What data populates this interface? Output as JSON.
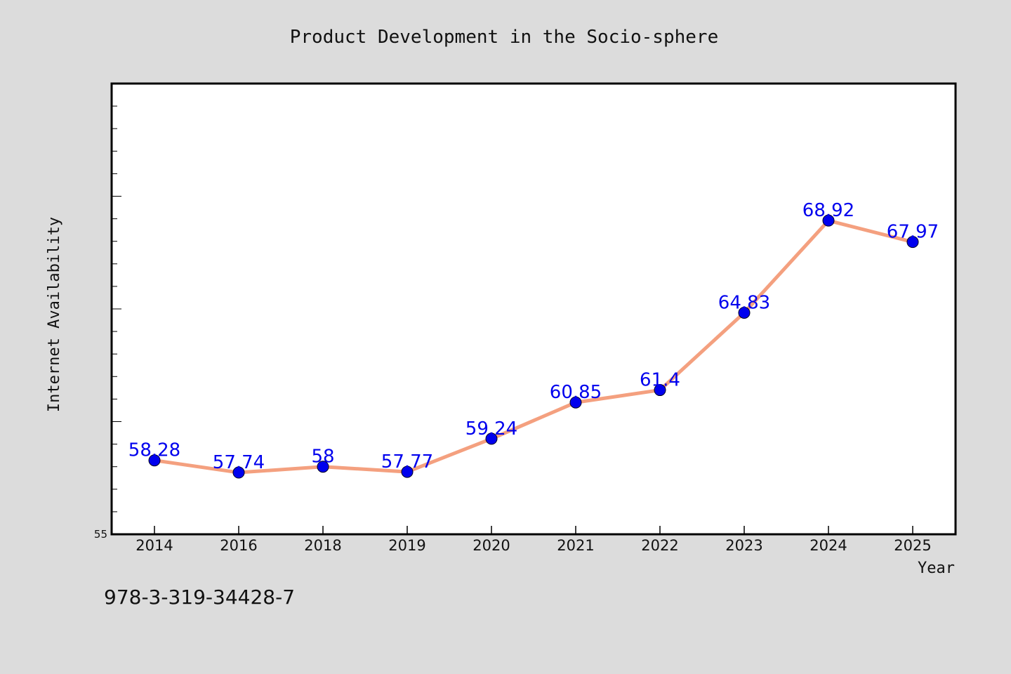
{
  "caption": "978-3-319-34428-7",
  "colors": {
    "background": "#dcdcdc",
    "plot_background": "#ffffff",
    "line": "#f4a07f",
    "marker": "#0000ee",
    "data_label": "#0000ee"
  },
  "chart_data": {
    "type": "line",
    "title": "Product Development in the Socio-sphere",
    "xlabel": "Year",
    "ylabel": "Internet Availability",
    "categories": [
      "2014",
      "2016",
      "2018",
      "2019",
      "2020",
      "2021",
      "2022",
      "2023",
      "2024",
      "2025"
    ],
    "series": [
      {
        "values": [
          58.28,
          57.74,
          58,
          57.77,
          59.24,
          60.85,
          61.4,
          64.83,
          68.92,
          67.97
        ],
        "data_labels": [
          "58.28",
          "57.74",
          "58",
          "57.77",
          "59.24",
          "60.85",
          "61.4",
          "64.83",
          "68.92",
          "67.97"
        ]
      }
    ],
    "ylim": [
      55,
      75
    ],
    "ytick_labels": [
      "55"
    ],
    "grid": false,
    "legend": "none"
  }
}
